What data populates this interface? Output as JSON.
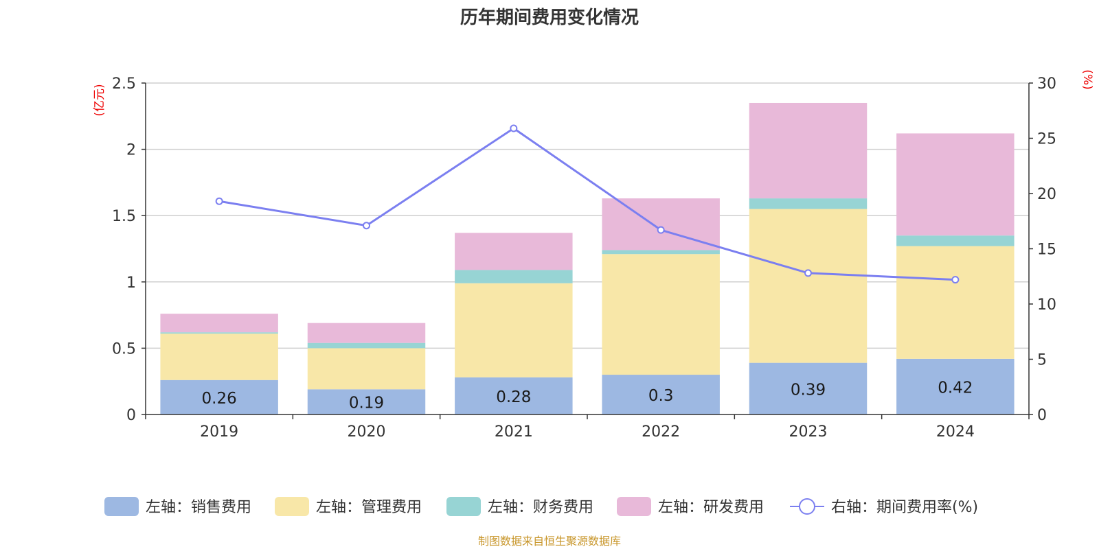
{
  "chart_data": {
    "type": "bar",
    "stacked": true,
    "title": "历年期间费用变化情况",
    "categories": [
      "2019",
      "2020",
      "2021",
      "2022",
      "2023",
      "2024"
    ],
    "y_left": {
      "unit": "(亿元)",
      "ylim": [
        0,
        2.5
      ],
      "ticks": [
        "0",
        "0.5",
        "1",
        "1.5",
        "2",
        "2.5"
      ]
    },
    "y_right": {
      "unit": "(%)",
      "ylim": [
        0,
        30
      ],
      "ticks": [
        "0",
        "5",
        "10",
        "15",
        "20",
        "25",
        "30"
      ]
    },
    "series": [
      {
        "name": "左轴：销售费用",
        "axis": "left",
        "type": "bar",
        "color": "#9db8e2",
        "values": [
          0.26,
          0.19,
          0.28,
          0.3,
          0.39,
          0.42
        ],
        "labels": [
          "0.26",
          "0.19",
          "0.28",
          "0.3",
          "0.39",
          "0.42"
        ]
      },
      {
        "name": "左轴：管理费用",
        "axis": "left",
        "type": "bar",
        "color": "#f8e7a8",
        "values": [
          0.35,
          0.31,
          0.71,
          0.91,
          1.16,
          0.85
        ]
      },
      {
        "name": "左轴：财务费用",
        "axis": "left",
        "type": "bar",
        "color": "#97d4d4",
        "values": [
          0.01,
          0.04,
          0.1,
          0.03,
          0.08,
          0.08
        ]
      },
      {
        "name": "左轴：研发费用",
        "axis": "left",
        "type": "bar",
        "color": "#e8b9d9",
        "values": [
          0.14,
          0.15,
          0.28,
          0.39,
          0.72,
          0.77
        ]
      },
      {
        "name": "右轴：期间费用率(%)",
        "axis": "right",
        "type": "line",
        "color": "#7b7ff0",
        "values": [
          19.3,
          17.1,
          25.9,
          16.7,
          12.8,
          12.2
        ]
      }
    ],
    "grid": true,
    "legend": "bottom"
  },
  "source": "制图数据来自恒生聚源数据库"
}
